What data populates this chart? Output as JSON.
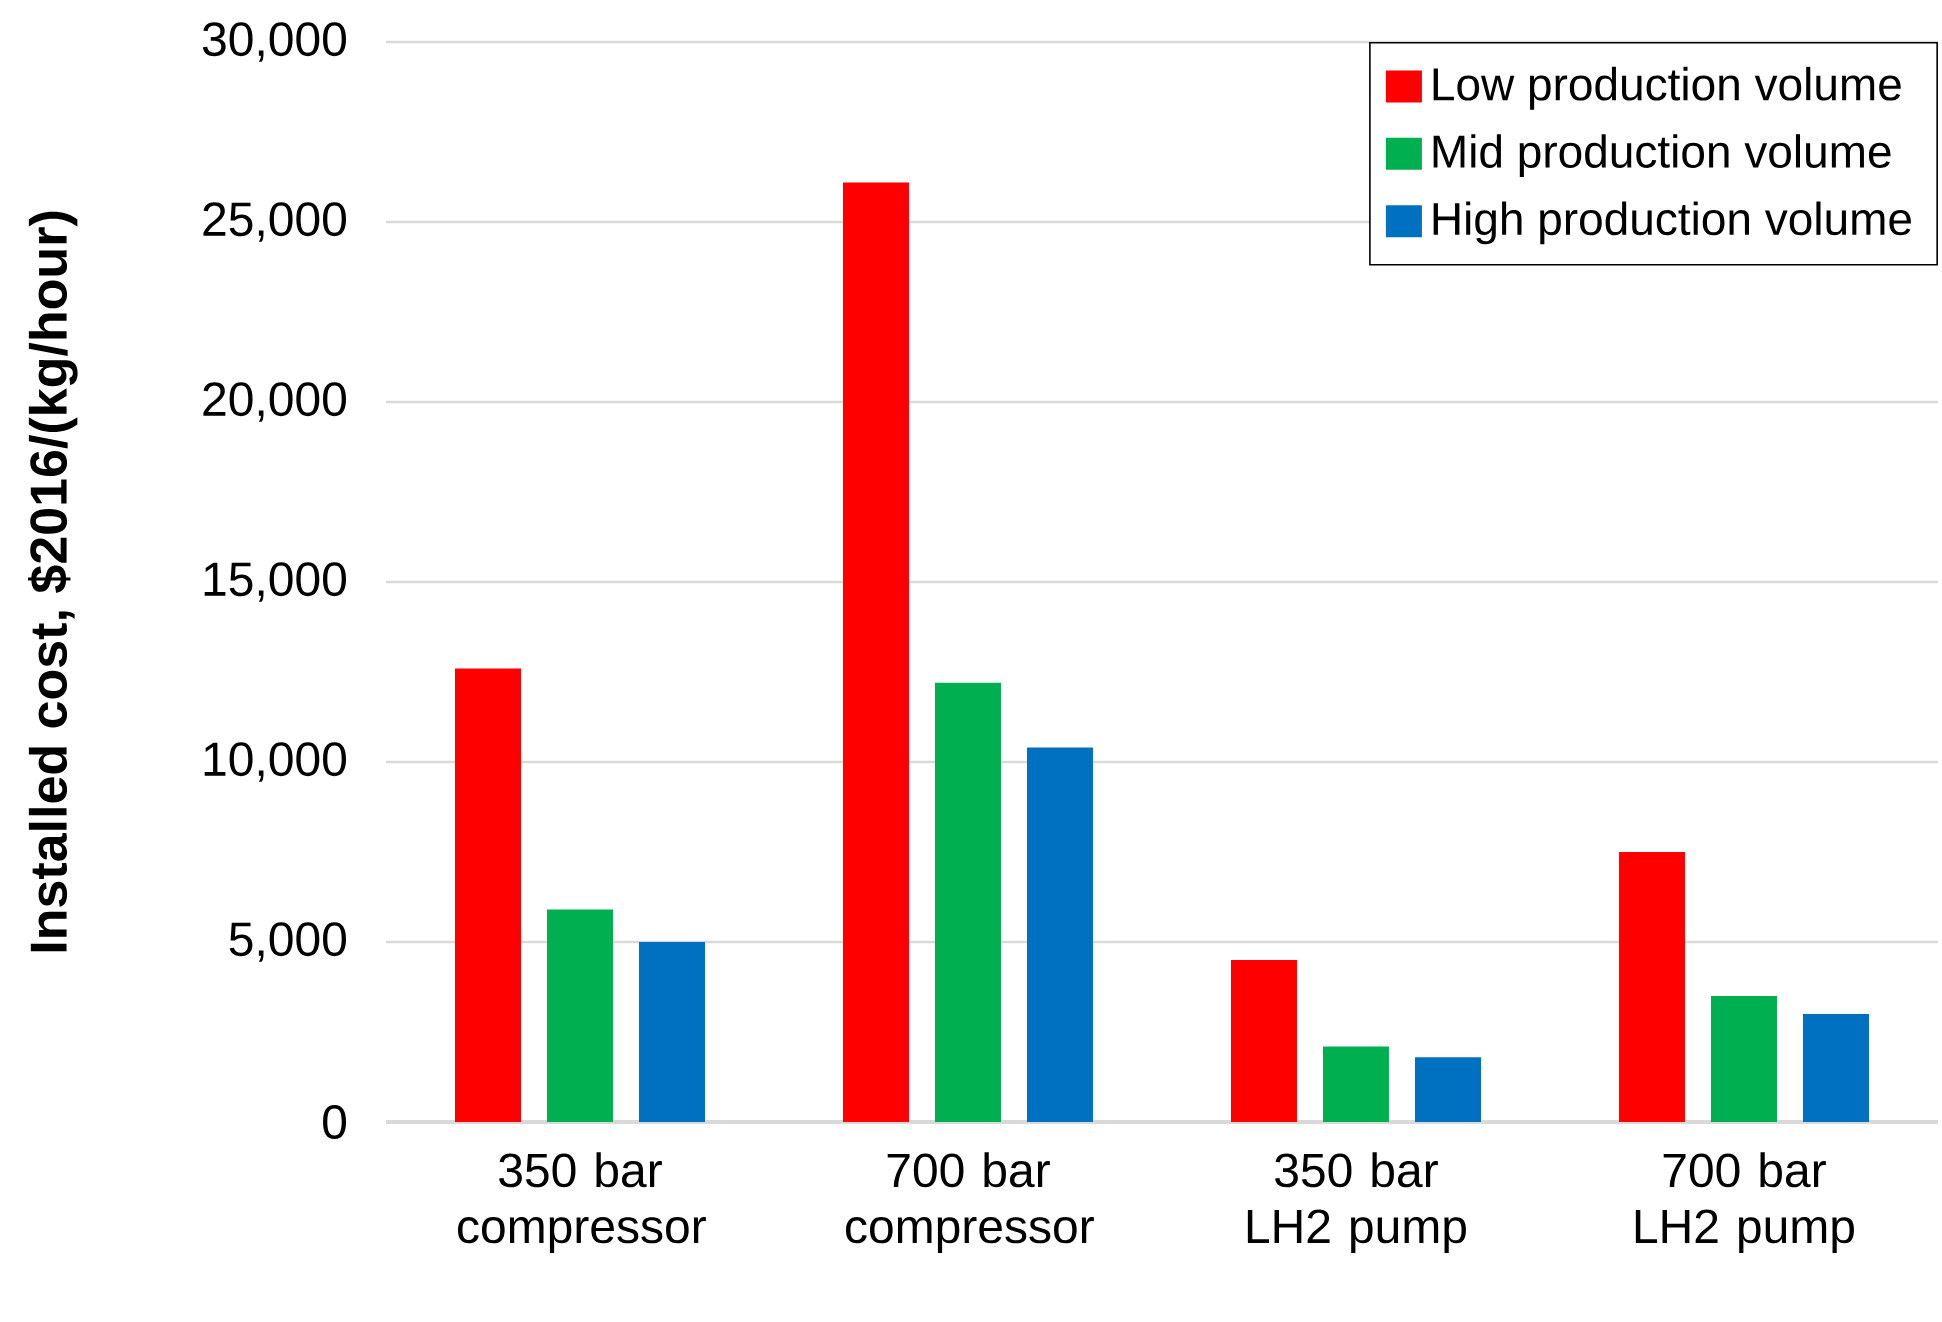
{
  "chart_data": {
    "type": "bar",
    "ylabel": "Installed cost, $2016/(kg/hour)",
    "categories": [
      "350 bar compressor",
      "700 bar compressor",
      "350 bar LH2 pump",
      "700 bar LH2 pump"
    ],
    "series": [
      {
        "name": "Low production volume",
        "color": "#ff0000",
        "values": [
          12600,
          26100,
          4500,
          7500
        ]
      },
      {
        "name": "Mid production volume",
        "color": "#00b050",
        "values": [
          5900,
          12200,
          2100,
          3500
        ]
      },
      {
        "name": "High production volume",
        "color": "#0070c0",
        "values": [
          5000,
          10400,
          1800,
          3000
        ]
      }
    ],
    "ylim": [
      0,
      30000
    ],
    "yticks": [
      {
        "value": 0,
        "label": "0"
      },
      {
        "value": 5000,
        "label": "5,000"
      },
      {
        "value": 10000,
        "label": "10,000"
      },
      {
        "value": 15000,
        "label": "15,000"
      },
      {
        "value": 20000,
        "label": "20,000"
      },
      {
        "value": 25000,
        "label": "25,000"
      },
      {
        "value": 30000,
        "label": "30,000"
      }
    ],
    "grid": "y",
    "legend": "top right"
  }
}
